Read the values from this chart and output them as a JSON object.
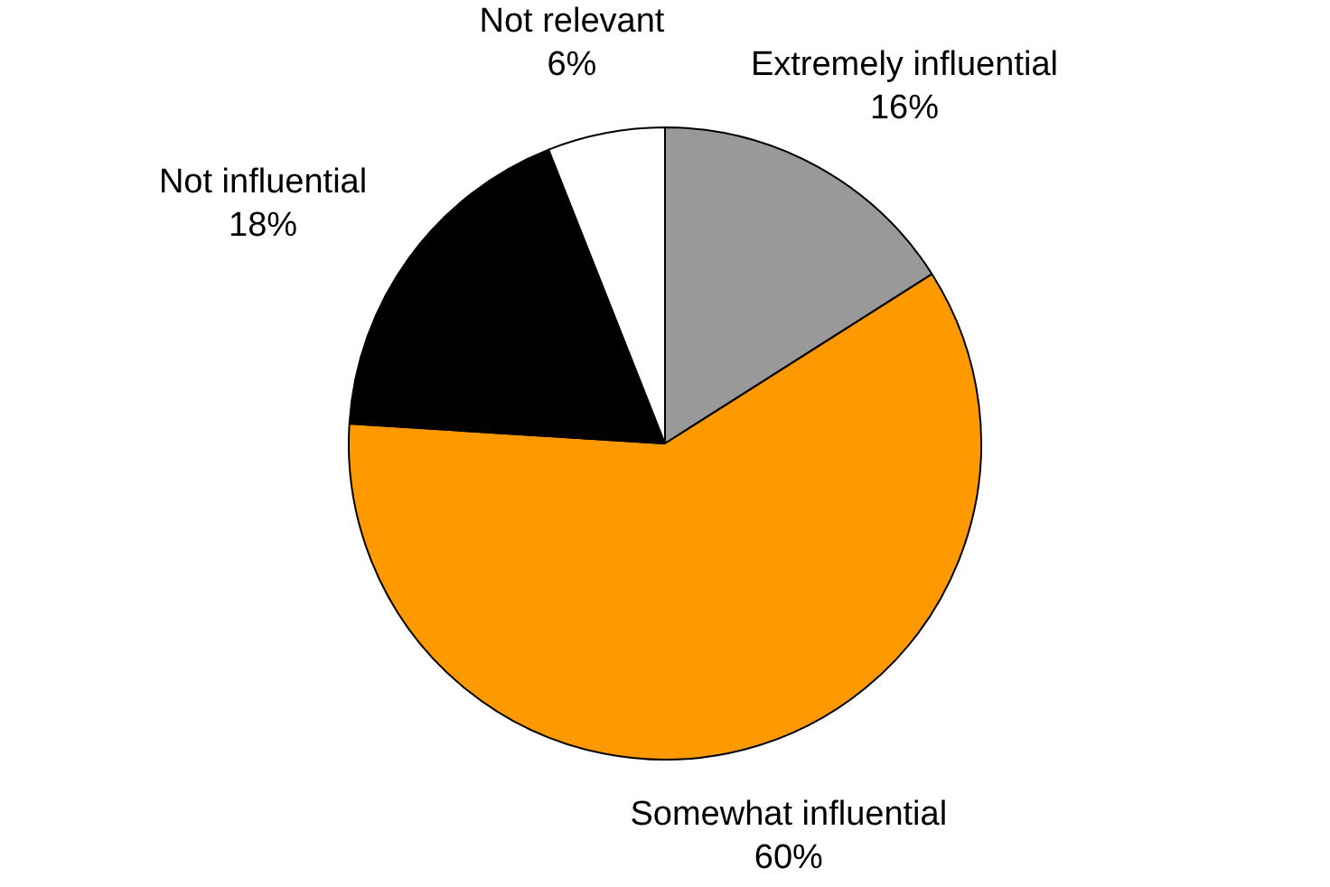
{
  "chart_data": {
    "type": "pie",
    "categories": [
      "Extremely influential",
      "Somewhat influential",
      "Not influential",
      "Not relevant"
    ],
    "values": [
      16,
      60,
      18,
      6
    ],
    "colors": [
      "#999999",
      "#ff9900",
      "#000000",
      "#ffffff"
    ],
    "value_labels": [
      "16%",
      "60%",
      "18%",
      "6%"
    ],
    "legend": false
  }
}
